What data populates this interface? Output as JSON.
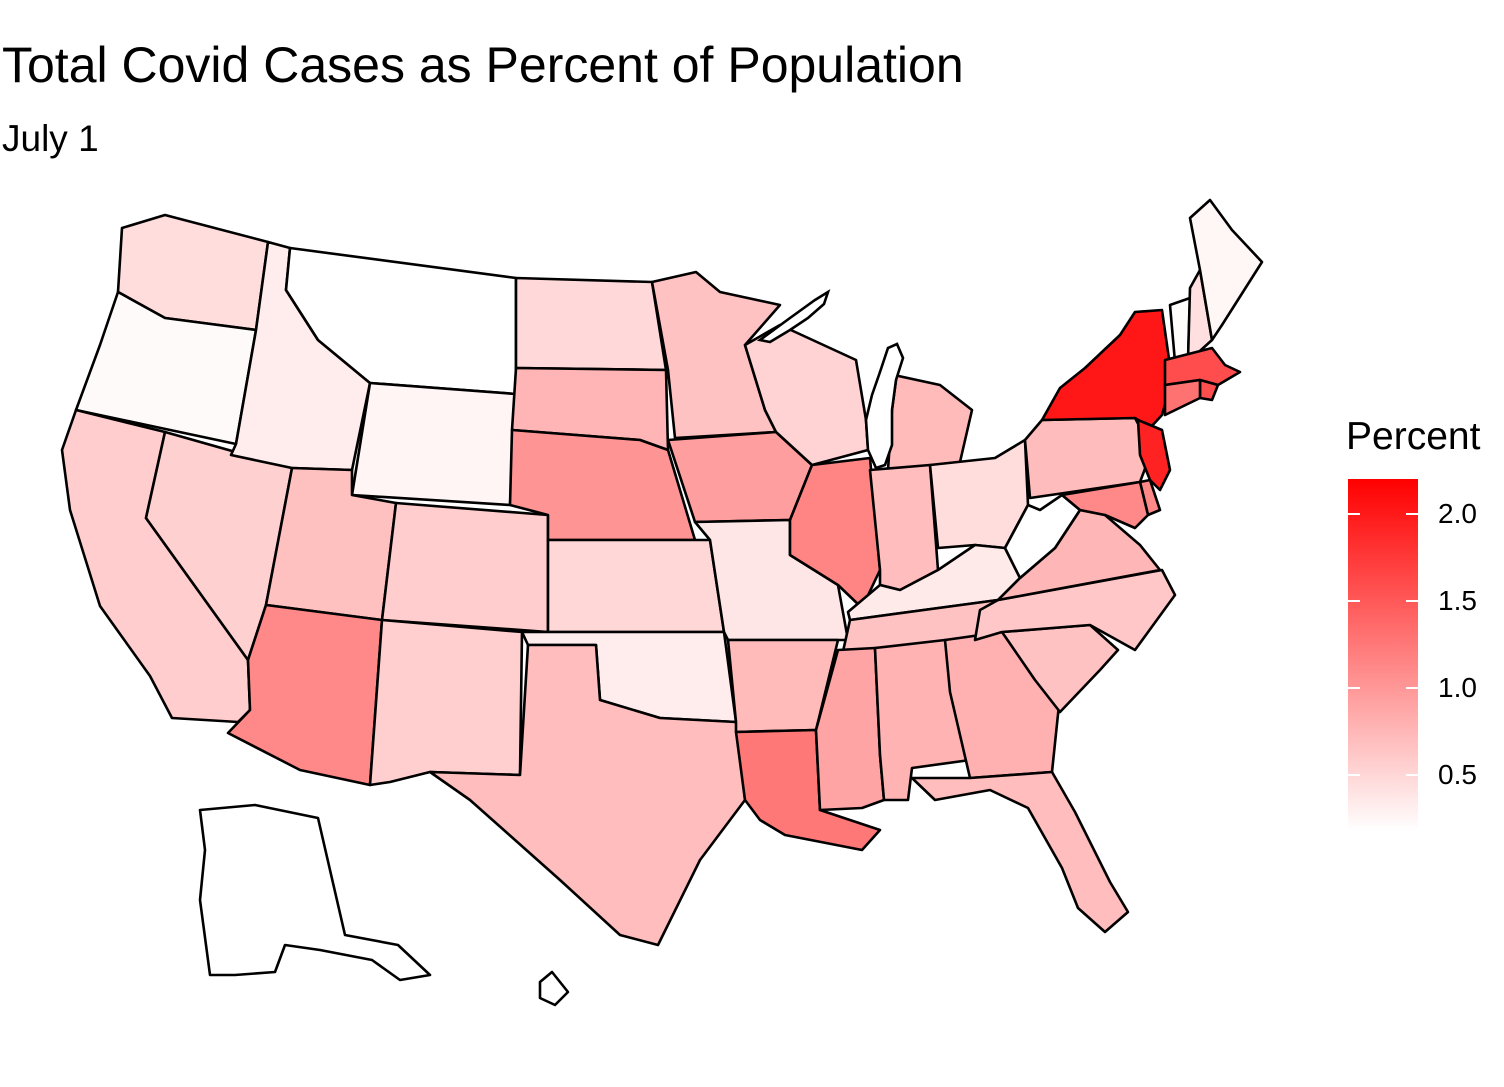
{
  "title": "Total Covid Cases as Percent of Population",
  "subtitle": "July 1",
  "legend": {
    "title": "Percent",
    "min": 0.18,
    "max": 2.2,
    "ticks": [
      {
        "value": 0.5,
        "label": "0.5"
      },
      {
        "value": 1.0,
        "label": "1.0"
      },
      {
        "value": 1.5,
        "label": "1.5"
      },
      {
        "value": 2.0,
        "label": "2.0"
      }
    ],
    "low_color": "#ffffff",
    "high_color": "#ff0000"
  },
  "chart_data": {
    "type": "choropleth",
    "fill": "percent",
    "states": [
      {
        "name": "Washington",
        "percent": 0.45
      },
      {
        "name": "Oregon",
        "percent": 0.22
      },
      {
        "name": "California",
        "percent": 0.58
      },
      {
        "name": "Nevada",
        "percent": 0.55
      },
      {
        "name": "Idaho",
        "percent": 0.33
      },
      {
        "name": "Montana",
        "percent": 0.09
      },
      {
        "name": "Wyoming",
        "percent": 0.26
      },
      {
        "name": "Utah",
        "percent": 0.68
      },
      {
        "name": "Colorado",
        "percent": 0.58
      },
      {
        "name": "Arizona",
        "percent": 1.12
      },
      {
        "name": "New Mexico",
        "percent": 0.57
      },
      {
        "name": "North Dakota",
        "percent": 0.48
      },
      {
        "name": "South Dakota",
        "percent": 0.77
      },
      {
        "name": "Nebraska",
        "percent": 1.03
      },
      {
        "name": "Kansas",
        "percent": 0.5
      },
      {
        "name": "Oklahoma",
        "percent": 0.33
      },
      {
        "name": "Texas",
        "percent": 0.7
      },
      {
        "name": "Minnesota",
        "percent": 0.66
      },
      {
        "name": "Iowa",
        "percent": 0.95
      },
      {
        "name": "Missouri",
        "percent": 0.38
      },
      {
        "name": "Arkansas",
        "percent": 0.73
      },
      {
        "name": "Louisiana",
        "percent": 1.25
      },
      {
        "name": "Wisconsin",
        "percent": 0.53
      },
      {
        "name": "Illinois",
        "percent": 1.15
      },
      {
        "name": "Michigan",
        "percent": 0.73
      },
      {
        "name": "Indiana",
        "percent": 0.7
      },
      {
        "name": "Ohio",
        "percent": 0.45
      },
      {
        "name": "Kentucky",
        "percent": 0.35
      },
      {
        "name": "Tennessee",
        "percent": 0.66
      },
      {
        "name": "Mississippi",
        "percent": 0.9
      },
      {
        "name": "Alabama",
        "percent": 0.78
      },
      {
        "name": "Georgia",
        "percent": 0.8
      },
      {
        "name": "Florida",
        "percent": 0.7
      },
      {
        "name": "South Carolina",
        "percent": 0.66
      },
      {
        "name": "North Carolina",
        "percent": 0.62
      },
      {
        "name": "Virginia",
        "percent": 0.76
      },
      {
        "name": "West Virginia",
        "percent": 0.17
      },
      {
        "name": "Pennsylvania",
        "percent": 0.71
      },
      {
        "name": "New York",
        "percent": 2.02
      },
      {
        "name": "Vermont",
        "percent": 0.2
      },
      {
        "name": "New Hampshire",
        "percent": 0.43
      },
      {
        "name": "Maine",
        "percent": 0.25
      },
      {
        "name": "Massachusetts",
        "percent": 1.6
      },
      {
        "name": "Rhode Island",
        "percent": 1.58
      },
      {
        "name": "Connecticut",
        "percent": 1.3
      },
      {
        "name": "New Jersey",
        "percent": 1.93
      },
      {
        "name": "Delaware",
        "percent": 1.12
      },
      {
        "name": "Maryland",
        "percent": 1.12
      },
      {
        "name": "Alaska",
        "percent": 0.12
      },
      {
        "name": "Hawaii",
        "percent": 0.07
      }
    ]
  }
}
